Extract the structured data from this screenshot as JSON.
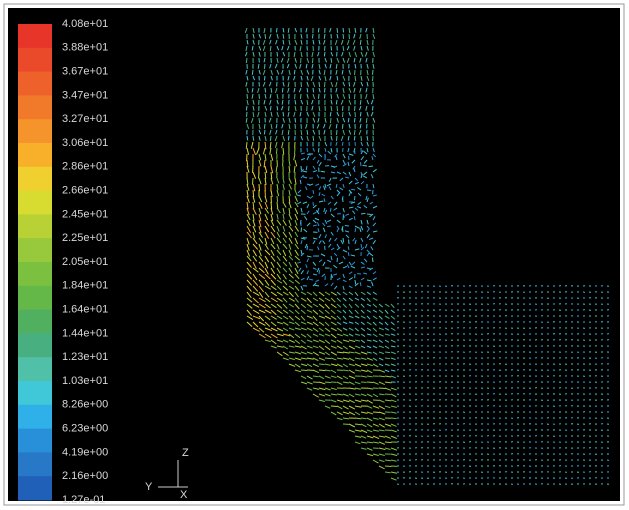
{
  "colorbar": {
    "labels": [
      "4.08e+01",
      "3.88e+01",
      "3.67e+01",
      "3.47e+01",
      "3.27e+01",
      "3.06e+01",
      "2.86e+01",
      "2.66e+01",
      "2.45e+01",
      "2.25e+01",
      "2.05e+01",
      "1.84e+01",
      "1.64e+01",
      "1.44e+01",
      "1.23e+01",
      "1.03e+01",
      "8.26e+00",
      "6.23e+00",
      "4.19e+00",
      "2.16e+00",
      "1.27e-01"
    ],
    "colors": [
      "#e8352a",
      "#ea4a2a",
      "#ee612a",
      "#f07a2a",
      "#f5942a",
      "#f8b02a",
      "#f0d02e",
      "#d8dc30",
      "#b8d236",
      "#98c83c",
      "#7cc040",
      "#64b848",
      "#50b060",
      "#48b080",
      "#50c0a8",
      "#40c8d8",
      "#30b0e8",
      "#2890d8",
      "#2878c8",
      "#2060b8"
    ]
  },
  "axes": {
    "z": "Z",
    "y": "Y",
    "x": "X"
  }
}
